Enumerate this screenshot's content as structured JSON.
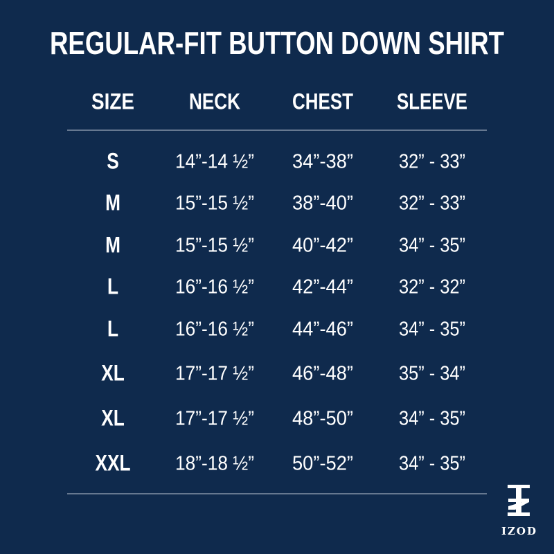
{
  "header": {
    "title": "REGULAR-FIT BUTTON DOWN SHIRT"
  },
  "table": {
    "headers": [
      "SIZE",
      "NECK",
      "CHEST",
      "SLEEVE"
    ],
    "rows": [
      [
        "S",
        "14”-14 ½”",
        "34”-38”",
        "32” - 33”"
      ],
      [
        "M",
        "15”-15 ½”",
        "38”-40”",
        "32” - 33”"
      ],
      [
        "M",
        "15”-15 ½”",
        "40”-42”",
        "34” - 35”"
      ],
      [
        "L",
        "16”-16 ½”",
        "42”-44”",
        "32” - 32”"
      ],
      [
        "L",
        "16”-16 ½”",
        "44”-46”",
        "34” - 35”"
      ],
      [
        "XL",
        "17”-17 ½”",
        "46”-48”",
        "35” - 34”"
      ],
      [
        "XL",
        "17”-17 ½”",
        "48”-50”",
        "34” - 35”"
      ],
      [
        "XXL",
        "18”-18 ½”",
        "50”-52”",
        "34” - 35”"
      ]
    ]
  },
  "logo": {
    "text": "IZOD"
  }
}
